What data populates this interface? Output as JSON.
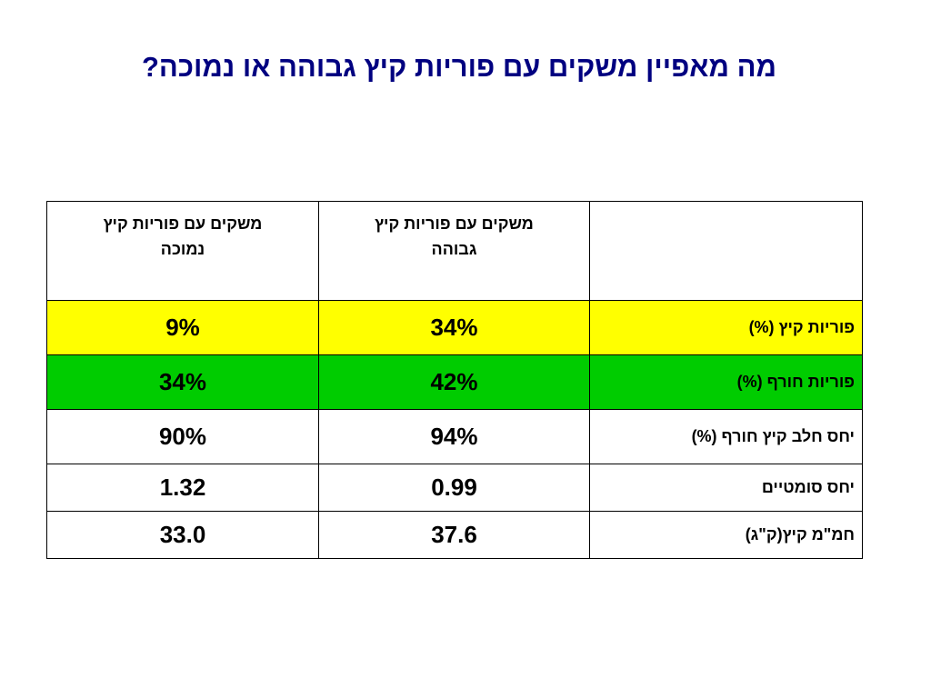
{
  "title": "מה מאפיין משקים עם פוריות קיץ גבוהה או נמוכה?",
  "table": {
    "header": {
      "low_line1": "משקים עם פוריות קיץ",
      "low_line2": "נמוכה",
      "high_line1": "משקים עם פוריות קיץ",
      "high_line2": "גבוהה",
      "label": ""
    },
    "rows": [
      {
        "label": "פוריות קיץ (%)",
        "high": "34%",
        "low": "9%",
        "highlight": "#ffff00"
      },
      {
        "label": "פוריות חורף (%)",
        "high": "42%",
        "low": "34%",
        "highlight": "#00cc00"
      },
      {
        "label": "יחס חלב קיץ חורף (%)",
        "high": "94%",
        "low": "90%",
        "highlight": "#ffffff"
      },
      {
        "label": "יחס סומטיים",
        "high": "0.99",
        "low": "1.32",
        "highlight": "#ffffff"
      },
      {
        "label": "חמ\"מ קיץ(ק\"ג)",
        "high": "37.6",
        "low": "33.0",
        "highlight": "#ffffff"
      }
    ]
  },
  "colors": {
    "title": "#000080",
    "yellow_row": "#ffff00",
    "green_row": "#00cc00"
  }
}
